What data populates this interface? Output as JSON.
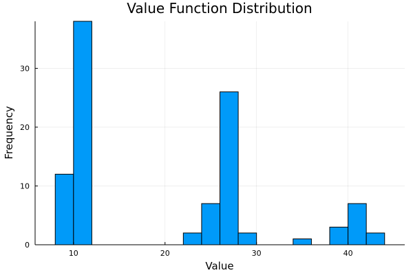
{
  "chart_data": {
    "type": "bar",
    "title": "Value Function Distribution",
    "xlabel": "Value",
    "ylabel": "Frequency",
    "bin_edges": [
      8,
      10,
      12,
      14,
      16,
      18,
      20,
      22,
      24,
      26,
      28,
      30,
      32,
      34,
      36,
      38,
      40,
      42,
      44
    ],
    "values": [
      12,
      38,
      0,
      0,
      0,
      0,
      0,
      2,
      7,
      26,
      2,
      0,
      0,
      1,
      0,
      3,
      7,
      2
    ],
    "xlim": [
      5.8,
      46.2
    ],
    "ylim": [
      0,
      38
    ],
    "xticks": [
      10,
      20,
      30,
      40
    ],
    "yticks": [
      0,
      10,
      20,
      30
    ],
    "grid": true,
    "legend": "none",
    "bar_color": "#009af9"
  }
}
